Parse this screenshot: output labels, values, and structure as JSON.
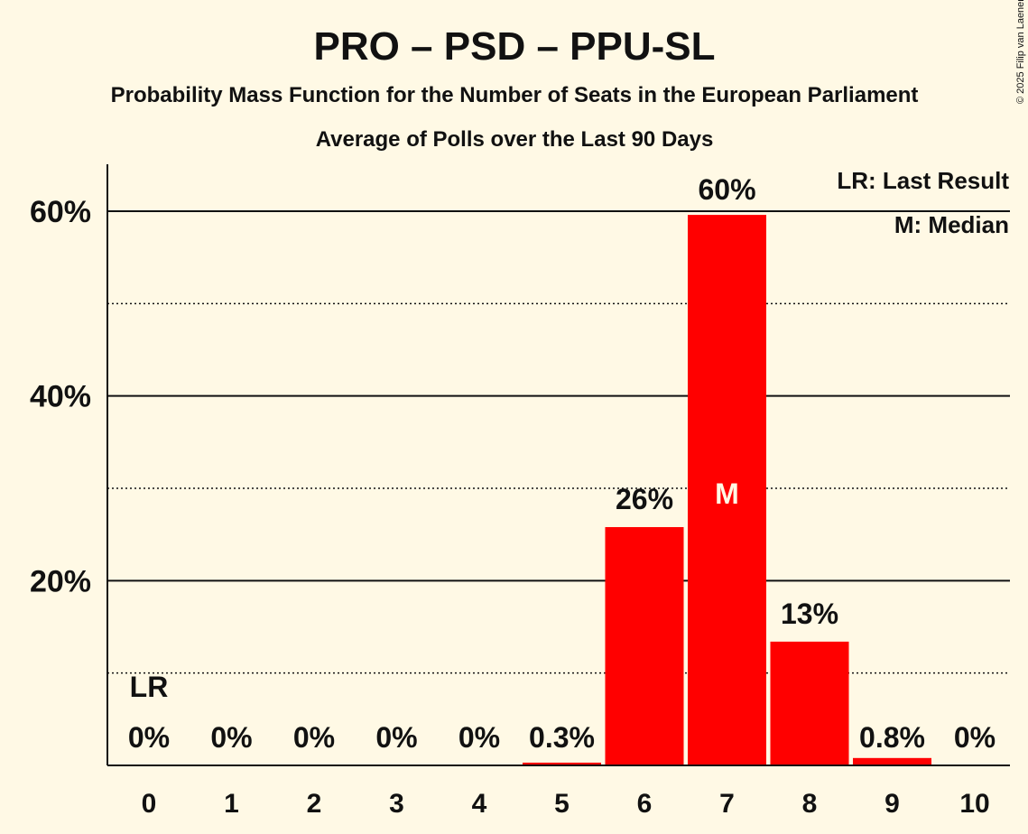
{
  "chart_data": {
    "type": "bar",
    "title": "PRO – PSD – PPU-SL",
    "subtitle": "Probability Mass Function for the Number of Seats in the European Parliament",
    "subtitle2": "Average of Polls over the Last 90 Days",
    "categories": [
      "0",
      "1",
      "2",
      "3",
      "4",
      "5",
      "6",
      "7",
      "8",
      "9",
      "10"
    ],
    "values": [
      0,
      0,
      0,
      0,
      0,
      0.3,
      25.8,
      59.6,
      13.4,
      0.8,
      0
    ],
    "data_labels": [
      "0%",
      "0%",
      "0%",
      "0%",
      "0%",
      "0.3%",
      "26%",
      "60%",
      "13%",
      "0.8%",
      "0%"
    ],
    "ylim": [
      0,
      65
    ],
    "yticks": [
      {
        "value": 20,
        "label": "20%"
      },
      {
        "value": 40,
        "label": "40%"
      },
      {
        "value": 60,
        "label": "60%"
      }
    ],
    "minor_gridlines": [
      10,
      30,
      50
    ],
    "bar_color": "#FF0000",
    "last_result": {
      "category": "0",
      "label": "LR"
    },
    "median": {
      "category": "7",
      "label": "M"
    },
    "legend": [
      "LR: Last Result",
      "M: Median"
    ],
    "legend_position": "top-right",
    "copyright": "© 2025 Filip van Laenen"
  }
}
